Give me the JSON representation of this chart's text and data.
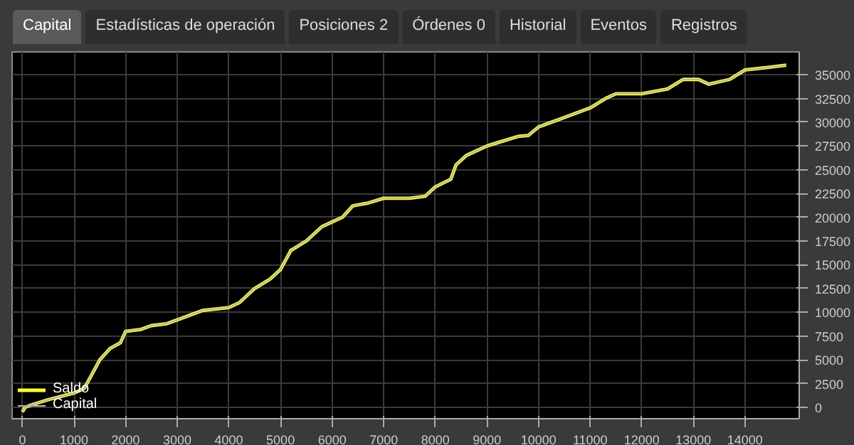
{
  "chart_data": {
    "type": "line",
    "annotations": [
      "Capital",
      "Estadísticas de operación",
      "Posiciones 2",
      "Órdenes 0",
      "Historial",
      "Eventos",
      "Registros"
    ],
    "x": [
      0,
      50,
      200,
      500,
      1000,
      1200,
      1300,
      1500,
      1700,
      1900,
      2000,
      2300,
      2500,
      2800,
      3000,
      3500,
      4000,
      4200,
      4500,
      4800,
      5000,
      5200,
      5500,
      5800,
      6000,
      6200,
      6400,
      6700,
      7000,
      7500,
      7800,
      8000,
      8300,
      8400,
      8600,
      8800,
      9000,
      9300,
      9600,
      9800,
      10000,
      10500,
      11000,
      11300,
      11500,
      12000,
      12500,
      12800,
      13100,
      13300,
      13700,
      14000,
      14500,
      14800
    ],
    "series": [
      {
        "name": "Capital",
        "color": "#b0b0b0",
        "values": [
          -500,
          0,
          300,
          800,
          1500,
          2000,
          3000,
          5000,
          6200,
          6800,
          8000,
          8200,
          8600,
          8800,
          9200,
          10200,
          10500,
          11000,
          12500,
          13500,
          14500,
          16500,
          17500,
          19000,
          19500,
          20000,
          21200,
          21500,
          22000,
          22000,
          22200,
          23200,
          24000,
          25500,
          26500,
          27000,
          27500,
          28000,
          28500,
          28600,
          29500,
          30500,
          31500,
          32500,
          33000,
          33000,
          33500,
          34500,
          34500,
          34000,
          34500,
          35500,
          35800,
          36000
        ]
      },
      {
        "name": "Saldo",
        "color": "#ffff33",
        "values": [
          -500,
          0,
          300,
          800,
          1500,
          2000,
          3000,
          5000,
          6200,
          6800,
          8000,
          8200,
          8600,
          8800,
          9200,
          10200,
          10500,
          11000,
          12500,
          13500,
          14500,
          16500,
          17500,
          19000,
          19500,
          20000,
          21200,
          21500,
          22000,
          22000,
          22200,
          23200,
          24000,
          25500,
          26500,
          27000,
          27500,
          28000,
          28500,
          28600,
          29500,
          30500,
          31500,
          32500,
          33000,
          33000,
          33500,
          34500,
          34500,
          34000,
          34500,
          35500,
          35800,
          36000
        ]
      }
    ],
    "xlim": [
      -200,
      15050
    ],
    "ylim": [
      -1200,
      37400
    ],
    "xticks": [
      0,
      1000,
      2000,
      3000,
      4000,
      5000,
      6000,
      7000,
      8000,
      9000,
      10000,
      11000,
      12000,
      13000,
      14000
    ],
    "yticks": [
      0,
      2500,
      5000,
      7500,
      10000,
      12500,
      15000,
      17500,
      20000,
      22500,
      25000,
      27500,
      30000,
      32500,
      35000
    ],
    "grid": true,
    "legend": "bottom left",
    "line_style": "solid",
    "marker": "none"
  }
}
